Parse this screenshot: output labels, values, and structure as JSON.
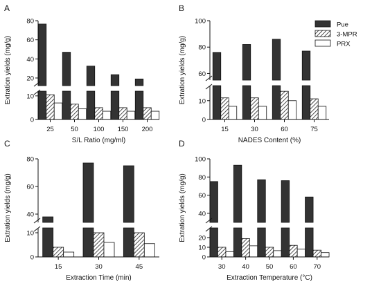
{
  "legend": {
    "placement": "top-right",
    "items": [
      {
        "name": "Pue",
        "pattern": "solid",
        "color": "#333333"
      },
      {
        "name": "3-MPR",
        "pattern": "hatch",
        "color": "#333333"
      },
      {
        "name": "PRX",
        "pattern": "none",
        "color": "#ffffff"
      }
    ]
  },
  "chart_data": [
    {
      "panel": "A",
      "type": "bar",
      "xlabel": "S/L Ratio (mg/ml)",
      "ylabel": "Extration yields (mg/g)",
      "categories": [
        "25",
        "50",
        "100",
        "150",
        "200"
      ],
      "series": [
        {
          "name": "Pue",
          "values": [
            76.5,
            47,
            32.5,
            23.5,
            19
          ]
        },
        {
          "name": "3-MPR",
          "values": [
            10.5,
            6.5,
            5,
            5,
            5
          ]
        },
        {
          "name": "PRX",
          "values": [
            7,
            4.5,
            3.5,
            3.5,
            3.5
          ]
        }
      ],
      "broken_axis": true,
      "lower_range": [
        0,
        12
      ],
      "upper_range": [
        12,
        80
      ],
      "lower_ticks": [
        0,
        10
      ],
      "upper_ticks": [
        20,
        40,
        60,
        80
      ],
      "grid": false
    },
    {
      "panel": "B",
      "type": "bar",
      "xlabel": "NADES Content (%)",
      "ylabel": "Extration yields (mg/g)",
      "categories": [
        "15",
        "30",
        "60",
        "75"
      ],
      "series": [
        {
          "name": "Pue",
          "values": [
            76,
            82,
            86,
            77
          ]
        },
        {
          "name": "3-MPR",
          "values": [
            11.5,
            11.5,
            15,
            11
          ]
        },
        {
          "name": "PRX",
          "values": [
            7,
            7,
            10,
            7
          ]
        }
      ],
      "broken_axis": true,
      "lower_range": [
        0,
        18
      ],
      "upper_range": [
        55,
        100
      ],
      "lower_ticks": [
        0,
        10
      ],
      "upper_ticks": [
        60,
        80,
        100
      ],
      "grid": false
    },
    {
      "panel": "C",
      "type": "bar",
      "xlabel": "Extraction Time (min)",
      "ylabel": "Extration yields (mg/g)",
      "categories": [
        "15",
        "30",
        "45"
      ],
      "series": [
        {
          "name": "Pue",
          "values": [
            38,
            77,
            75
          ]
        },
        {
          "name": "3-MPR",
          "values": [
            4,
            10,
            10
          ]
        },
        {
          "name": "PRX",
          "values": [
            2,
            6,
            5.5
          ]
        }
      ],
      "broken_axis": true,
      "lower_range": [
        0,
        12
      ],
      "upper_range": [
        34,
        80
      ],
      "lower_ticks": [
        0,
        10
      ],
      "upper_ticks": [
        40,
        60,
        80
      ],
      "grid": false
    },
    {
      "panel": "D",
      "type": "bar",
      "xlabel": "Extraction Temperature (°C)",
      "ylabel": "Extration yields (mg/g)",
      "categories": [
        "30",
        "40",
        "50",
        "60",
        "70"
      ],
      "series": [
        {
          "name": "Pue",
          "values": [
            75,
            93,
            77,
            76,
            58
          ]
        },
        {
          "name": "3-MPR",
          "values": [
            10,
            19,
            10,
            12,
            7
          ]
        },
        {
          "name": "PRX",
          "values": [
            5.5,
            11.5,
            6.5,
            8,
            4.5
          ]
        }
      ],
      "broken_axis": true,
      "lower_range": [
        0,
        30
      ],
      "upper_range": [
        30,
        100
      ],
      "lower_ticks": [
        0,
        10,
        20
      ],
      "upper_ticks": [
        40,
        60,
        80,
        100
      ],
      "grid": false
    }
  ]
}
